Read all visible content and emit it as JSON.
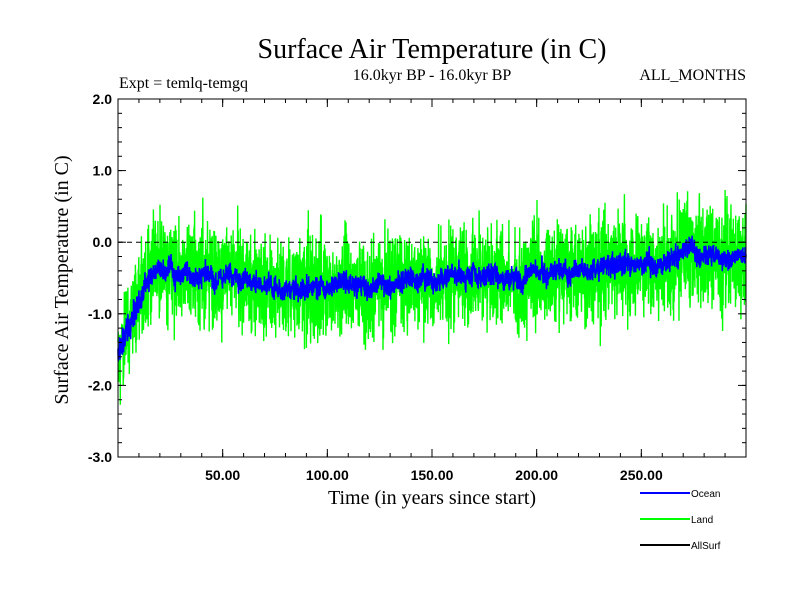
{
  "chart_data": {
    "type": "line",
    "title": "Surface Air Temperature (in C)",
    "subtitle_left": "Expt = temlq-temgq",
    "subtitle_center": "16.0kyr BP - 16.0kyr BP",
    "subtitle_right": "ALL_MONTHS",
    "xlabel": "Time (in years since start)",
    "ylabel": "Surface Air Temperature (in C)",
    "xlim": [
      0,
      300
    ],
    "ylim": [
      -3.0,
      2.0
    ],
    "x_ticks": [
      {
        "value": 50,
        "label": "50.00"
      },
      {
        "value": 100,
        "label": "100.00"
      },
      {
        "value": 150,
        "label": "150.00"
      },
      {
        "value": 200,
        "label": "200.00"
      },
      {
        "value": 250,
        "label": "250.00"
      }
    ],
    "y_ticks": [
      {
        "value": 2.0,
        "label": "2.0"
      },
      {
        "value": 1.0,
        "label": "1.0"
      },
      {
        "value": 0.0,
        "label": "0.0"
      },
      {
        "value": -1.0,
        "label": "-1.0"
      },
      {
        "value": -2.0,
        "label": "-2.0"
      },
      {
        "value": -3.0,
        "label": "-3.0"
      }
    ],
    "reference_line": 0.0,
    "legend_position": "bottom-right",
    "series": [
      {
        "name": "Land",
        "color": "#00ff00",
        "x": [
          0,
          5,
          10,
          15,
          20,
          25,
          30,
          40,
          50,
          60,
          70,
          80,
          90,
          100,
          110,
          120,
          130,
          140,
          150,
          160,
          170,
          180,
          190,
          200,
          210,
          220,
          230,
          240,
          250,
          260,
          270,
          280,
          290,
          300
        ],
        "mean": [
          -1.6,
          -1.2,
          -0.8,
          -0.5,
          -0.4,
          -0.4,
          -0.45,
          -0.45,
          -0.45,
          -0.5,
          -0.6,
          -0.65,
          -0.65,
          -0.6,
          -0.55,
          -0.6,
          -0.6,
          -0.5,
          -0.55,
          -0.45,
          -0.45,
          -0.45,
          -0.5,
          -0.45,
          -0.4,
          -0.4,
          -0.35,
          -0.3,
          -0.3,
          -0.3,
          -0.15,
          -0.15,
          -0.2,
          -0.2
        ],
        "spread": [
          0.6,
          0.7,
          0.75,
          0.8,
          0.8,
          0.8,
          0.8,
          0.8,
          0.8,
          0.8,
          0.8,
          0.8,
          0.8,
          0.8,
          0.8,
          0.8,
          0.8,
          0.8,
          0.8,
          0.8,
          0.8,
          0.8,
          0.8,
          0.8,
          0.8,
          0.8,
          0.8,
          0.8,
          0.8,
          0.8,
          0.85,
          0.85,
          0.8,
          0.8
        ],
        "max": 1.3,
        "min": -2.45
      },
      {
        "name": "Ocean",
        "color": "#0000ff",
        "x": [
          0,
          5,
          10,
          15,
          20,
          25,
          30,
          40,
          50,
          60,
          70,
          80,
          90,
          100,
          110,
          120,
          130,
          140,
          150,
          160,
          170,
          180,
          190,
          200,
          210,
          220,
          230,
          240,
          250,
          260,
          270,
          280,
          290,
          300
        ],
        "mean": [
          -1.6,
          -1.2,
          -0.8,
          -0.5,
          -0.4,
          -0.4,
          -0.45,
          -0.45,
          -0.45,
          -0.5,
          -0.6,
          -0.65,
          -0.65,
          -0.6,
          -0.55,
          -0.6,
          -0.6,
          -0.5,
          -0.55,
          -0.45,
          -0.45,
          -0.45,
          -0.5,
          -0.45,
          -0.4,
          -0.4,
          -0.35,
          -0.3,
          -0.3,
          -0.3,
          -0.15,
          -0.15,
          -0.2,
          -0.2
        ],
        "spread": [
          0.25,
          0.25,
          0.25,
          0.2,
          0.2,
          0.2,
          0.2,
          0.2,
          0.2,
          0.2,
          0.2,
          0.2,
          0.2,
          0.2,
          0.2,
          0.2,
          0.2,
          0.2,
          0.2,
          0.2,
          0.2,
          0.2,
          0.2,
          0.2,
          0.2,
          0.2,
          0.2,
          0.2,
          0.2,
          0.2,
          0.2,
          0.2,
          0.2,
          0.2
        ]
      },
      {
        "name": "AllSurf",
        "color": "#000000"
      }
    ],
    "legend": [
      {
        "name": "Ocean",
        "color": "#0000ff"
      },
      {
        "name": "Land",
        "color": "#00ff00"
      },
      {
        "name": "AllSurf",
        "color": "#000000"
      }
    ]
  }
}
